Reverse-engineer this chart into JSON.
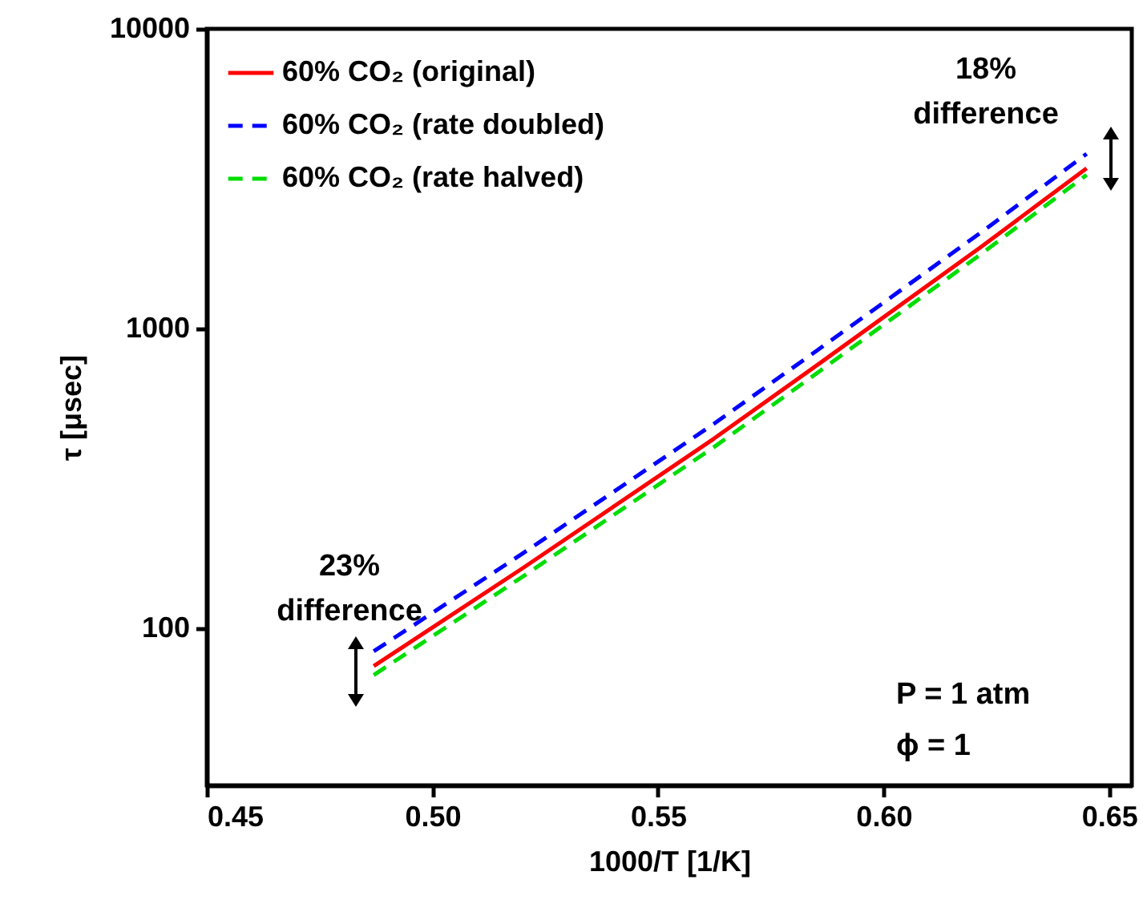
{
  "chart_data": {
    "type": "line",
    "xlabel": "1000/T [1/K]",
    "ylabel": "τ [μsec]",
    "log": "y",
    "xlim": [
      0.45,
      0.655
    ],
    "ylim": [
      30,
      10000
    ],
    "xticks": [
      0.45,
      {
        "value": 0.5,
        "label": "0.50"
      },
      0.55,
      {
        "value": 0.6,
        "label": "0.60"
      },
      0.65
    ],
    "yticks": [
      100,
      {
        "value": 1000,
        "label": "1000"
      },
      {
        "value": 10000,
        "label": "10000"
      }
    ],
    "grid": false,
    "legend": "top left",
    "marker": "none",
    "x": [
      0.487,
      0.496,
      0.52,
      0.5624,
      0.586,
      0.6215,
      0.645
    ],
    "series": [
      {
        "name": "60% CO₂ (original)",
        "color": "#ff0000",
        "line_style": "solid",
        "values": [
          75,
          92,
          159,
          430,
          770,
          1870,
          3430
        ]
      },
      {
        "name": "60% CO₂ (rate doubled)",
        "color": "#0000ff",
        "line_style": "dashed",
        "values": [
          84,
          103,
          178,
          482,
          862,
          2090,
          3830
        ]
      },
      {
        "name": "60% CO₂ (rate halved)",
        "color": "#00dd00",
        "line_style": "dashed",
        "values": [
          70,
          86,
          149,
          403,
          725,
          1770,
          3260
        ]
      }
    ],
    "annotations": [
      "18% difference",
      "23% difference",
      "P = 1 atm",
      "ϕ = 1"
    ]
  }
}
